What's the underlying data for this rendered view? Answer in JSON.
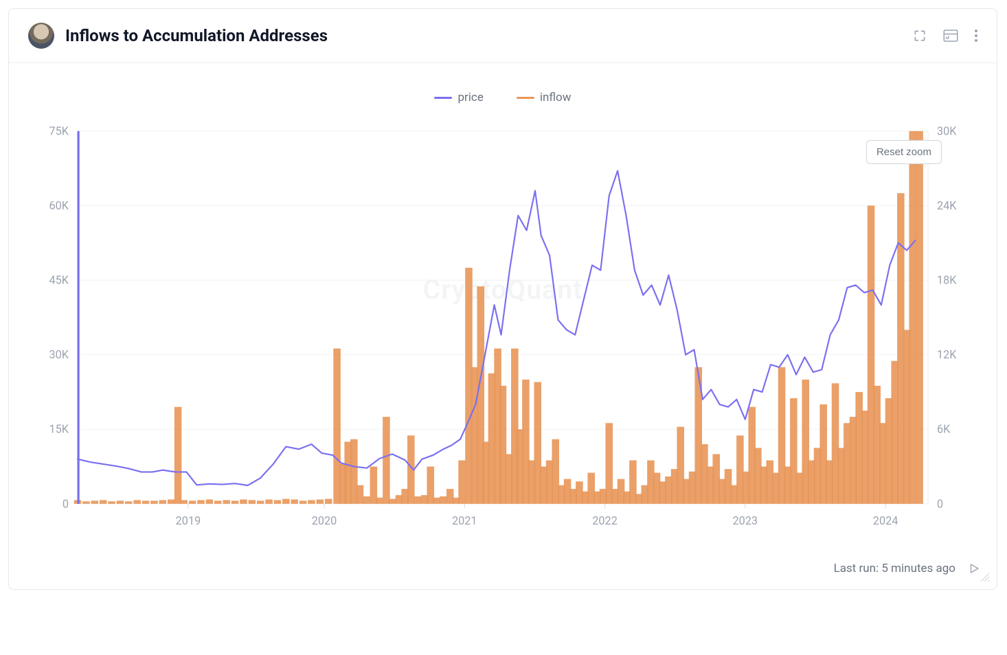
{
  "header": {
    "title": "Inflows to Accumulation Addresses"
  },
  "legend": {
    "price": {
      "label": "price",
      "color": "#7a6ff0"
    },
    "inflow": {
      "label": "inflow",
      "color": "#e89658"
    }
  },
  "reset_zoom_label": "Reset zoom",
  "watermark": "CryptoQuant",
  "footer": {
    "last_run_label": "Last run: 5 minutes ago"
  },
  "chart": {
    "type": "dual-axis-line-bar",
    "background_color": "#ffffff",
    "grid_color": "#f1f2f4",
    "axis_text_color": "#9ca3af",
    "axis_fontsize": 15,
    "x_axis": {
      "type": "time",
      "tick_labels": [
        "2019",
        "2020",
        "2021",
        "2022",
        "2023",
        "2024"
      ],
      "tick_positions": [
        0.13,
        0.29,
        0.455,
        0.62,
        0.785,
        0.95
      ]
    },
    "y_left": {
      "label": "price",
      "min": 0,
      "max": 75000,
      "ticks": [
        0,
        15000,
        30000,
        45000,
        60000,
        75000
      ],
      "tick_labels": [
        "0",
        "15K",
        "30K",
        "45K",
        "60K",
        "75K"
      ]
    },
    "y_right": {
      "label": "inflow",
      "min": 0,
      "max": 30000,
      "ticks": [
        0,
        6000,
        12000,
        18000,
        24000,
        30000
      ],
      "tick_labels": [
        "0",
        "6K",
        "12K",
        "18K",
        "24K",
        "30K"
      ]
    },
    "series": {
      "price": {
        "type": "line",
        "color": "#7a6ff0",
        "line_width": 2,
        "axis": "left",
        "data": [
          [
            0.0,
            9000
          ],
          [
            0.015,
            8400
          ],
          [
            0.03,
            8000
          ],
          [
            0.045,
            7600
          ],
          [
            0.06,
            7100
          ],
          [
            0.075,
            6400
          ],
          [
            0.088,
            6400
          ],
          [
            0.1,
            6800
          ],
          [
            0.115,
            6400
          ],
          [
            0.128,
            6400
          ],
          [
            0.14,
            3800
          ],
          [
            0.155,
            4000
          ],
          [
            0.17,
            3900
          ],
          [
            0.185,
            4100
          ],
          [
            0.2,
            3700
          ],
          [
            0.215,
            5200
          ],
          [
            0.23,
            8000
          ],
          [
            0.245,
            11500
          ],
          [
            0.26,
            11000
          ],
          [
            0.275,
            12000
          ],
          [
            0.287,
            10200
          ],
          [
            0.3,
            9800
          ],
          [
            0.31,
            8200
          ],
          [
            0.325,
            7500
          ],
          [
            0.34,
            7200
          ],
          [
            0.355,
            9100
          ],
          [
            0.37,
            10000
          ],
          [
            0.385,
            8800
          ],
          [
            0.395,
            6800
          ],
          [
            0.405,
            9000
          ],
          [
            0.418,
            9800
          ],
          [
            0.43,
            11000
          ],
          [
            0.44,
            11800
          ],
          [
            0.45,
            13000
          ],
          [
            0.458,
            16000
          ],
          [
            0.468,
            20000
          ],
          [
            0.478,
            29000
          ],
          [
            0.49,
            40000
          ],
          [
            0.498,
            34000
          ],
          [
            0.508,
            47000
          ],
          [
            0.518,
            58000
          ],
          [
            0.528,
            55000
          ],
          [
            0.538,
            63000
          ],
          [
            0.545,
            54000
          ],
          [
            0.555,
            50000
          ],
          [
            0.565,
            37000
          ],
          [
            0.575,
            35000
          ],
          [
            0.585,
            34000
          ],
          [
            0.595,
            41000
          ],
          [
            0.605,
            48000
          ],
          [
            0.615,
            47000
          ],
          [
            0.625,
            62000
          ],
          [
            0.635,
            67000
          ],
          [
            0.645,
            58000
          ],
          [
            0.655,
            47000
          ],
          [
            0.665,
            42000
          ],
          [
            0.675,
            44000
          ],
          [
            0.685,
            40000
          ],
          [
            0.695,
            46000
          ],
          [
            0.705,
            39000
          ],
          [
            0.715,
            30000
          ],
          [
            0.725,
            31000
          ],
          [
            0.735,
            21000
          ],
          [
            0.745,
            23000
          ],
          [
            0.755,
            20000
          ],
          [
            0.765,
            19500
          ],
          [
            0.775,
            21000
          ],
          [
            0.785,
            17000
          ],
          [
            0.795,
            23000
          ],
          [
            0.805,
            22500
          ],
          [
            0.815,
            28000
          ],
          [
            0.825,
            27500
          ],
          [
            0.835,
            30000
          ],
          [
            0.845,
            26000
          ],
          [
            0.855,
            29500
          ],
          [
            0.865,
            26500
          ],
          [
            0.875,
            27000
          ],
          [
            0.885,
            34000
          ],
          [
            0.895,
            37000
          ],
          [
            0.905,
            43500
          ],
          [
            0.915,
            44000
          ],
          [
            0.925,
            42500
          ],
          [
            0.935,
            43000
          ],
          [
            0.945,
            40000
          ],
          [
            0.955,
            48000
          ],
          [
            0.965,
            52500
          ],
          [
            0.975,
            51000
          ],
          [
            0.985,
            53000
          ]
        ]
      },
      "inflow": {
        "type": "bar",
        "color": "#e89658",
        "bar_width": 1.1,
        "axis": "right",
        "data": [
          [
            0.0,
            300
          ],
          [
            0.01,
            200
          ],
          [
            0.02,
            250
          ],
          [
            0.03,
            300
          ],
          [
            0.04,
            200
          ],
          [
            0.05,
            250
          ],
          [
            0.06,
            200
          ],
          [
            0.07,
            300
          ],
          [
            0.08,
            250
          ],
          [
            0.09,
            250
          ],
          [
            0.1,
            300
          ],
          [
            0.11,
            350
          ],
          [
            0.118,
            7800
          ],
          [
            0.125,
            300
          ],
          [
            0.135,
            250
          ],
          [
            0.145,
            300
          ],
          [
            0.155,
            350
          ],
          [
            0.165,
            250
          ],
          [
            0.175,
            300
          ],
          [
            0.185,
            250
          ],
          [
            0.195,
            350
          ],
          [
            0.205,
            300
          ],
          [
            0.215,
            250
          ],
          [
            0.225,
            350
          ],
          [
            0.235,
            300
          ],
          [
            0.245,
            400
          ],
          [
            0.255,
            350
          ],
          [
            0.265,
            250
          ],
          [
            0.275,
            300
          ],
          [
            0.285,
            350
          ],
          [
            0.295,
            400
          ],
          [
            0.305,
            12500
          ],
          [
            0.312,
            3200
          ],
          [
            0.318,
            5000
          ],
          [
            0.325,
            5200
          ],
          [
            0.332,
            1500
          ],
          [
            0.34,
            600
          ],
          [
            0.348,
            3000
          ],
          [
            0.355,
            500
          ],
          [
            0.363,
            7000
          ],
          [
            0.37,
            400
          ],
          [
            0.378,
            700
          ],
          [
            0.385,
            1200
          ],
          [
            0.392,
            5500
          ],
          [
            0.4,
            600
          ],
          [
            0.408,
            700
          ],
          [
            0.415,
            3000
          ],
          [
            0.422,
            500
          ],
          [
            0.43,
            600
          ],
          [
            0.438,
            1200
          ],
          [
            0.445,
            500
          ],
          [
            0.452,
            3500
          ],
          [
            0.46,
            19000
          ],
          [
            0.467,
            11000
          ],
          [
            0.474,
            17500
          ],
          [
            0.48,
            5000
          ],
          [
            0.487,
            10500
          ],
          [
            0.494,
            12500
          ],
          [
            0.5,
            9500
          ],
          [
            0.507,
            4000
          ],
          [
            0.514,
            12500
          ],
          [
            0.52,
            6000
          ],
          [
            0.527,
            10000
          ],
          [
            0.534,
            3500
          ],
          [
            0.541,
            9800
          ],
          [
            0.548,
            3000
          ],
          [
            0.555,
            3500
          ],
          [
            0.562,
            5200
          ],
          [
            0.569,
            1500
          ],
          [
            0.576,
            2000
          ],
          [
            0.583,
            1200
          ],
          [
            0.59,
            1800
          ],
          [
            0.597,
            1000
          ],
          [
            0.604,
            2500
          ],
          [
            0.611,
            1000
          ],
          [
            0.618,
            1200
          ],
          [
            0.625,
            6500
          ],
          [
            0.632,
            1200
          ],
          [
            0.639,
            2000
          ],
          [
            0.646,
            1000
          ],
          [
            0.653,
            3500
          ],
          [
            0.66,
            800
          ],
          [
            0.667,
            1500
          ],
          [
            0.674,
            3500
          ],
          [
            0.681,
            2500
          ],
          [
            0.688,
            1800
          ],
          [
            0.695,
            2200
          ],
          [
            0.702,
            2800
          ],
          [
            0.709,
            6200
          ],
          [
            0.716,
            2000
          ],
          [
            0.723,
            2600
          ],
          [
            0.73,
            11000
          ],
          [
            0.737,
            4800
          ],
          [
            0.744,
            3000
          ],
          [
            0.751,
            4000
          ],
          [
            0.758,
            2000
          ],
          [
            0.765,
            2800
          ],
          [
            0.772,
            1500
          ],
          [
            0.779,
            5500
          ],
          [
            0.786,
            2600
          ],
          [
            0.793,
            7800
          ],
          [
            0.8,
            4500
          ],
          [
            0.807,
            3000
          ],
          [
            0.814,
            3500
          ],
          [
            0.821,
            2500
          ],
          [
            0.828,
            11000
          ],
          [
            0.835,
            3000
          ],
          [
            0.842,
            8500
          ],
          [
            0.849,
            2500
          ],
          [
            0.856,
            10000
          ],
          [
            0.863,
            3500
          ],
          [
            0.87,
            4500
          ],
          [
            0.877,
            8000
          ],
          [
            0.884,
            3500
          ],
          [
            0.891,
            9700
          ],
          [
            0.898,
            4500
          ],
          [
            0.905,
            6500
          ],
          [
            0.912,
            7000
          ],
          [
            0.919,
            9000
          ],
          [
            0.926,
            7500
          ],
          [
            0.933,
            24000
          ],
          [
            0.94,
            9500
          ],
          [
            0.947,
            6500
          ],
          [
            0.954,
            8500
          ],
          [
            0.961,
            11500
          ],
          [
            0.968,
            25000
          ],
          [
            0.975,
            14000
          ],
          [
            0.982,
            30000
          ],
          [
            0.99,
            30000
          ]
        ]
      }
    }
  }
}
